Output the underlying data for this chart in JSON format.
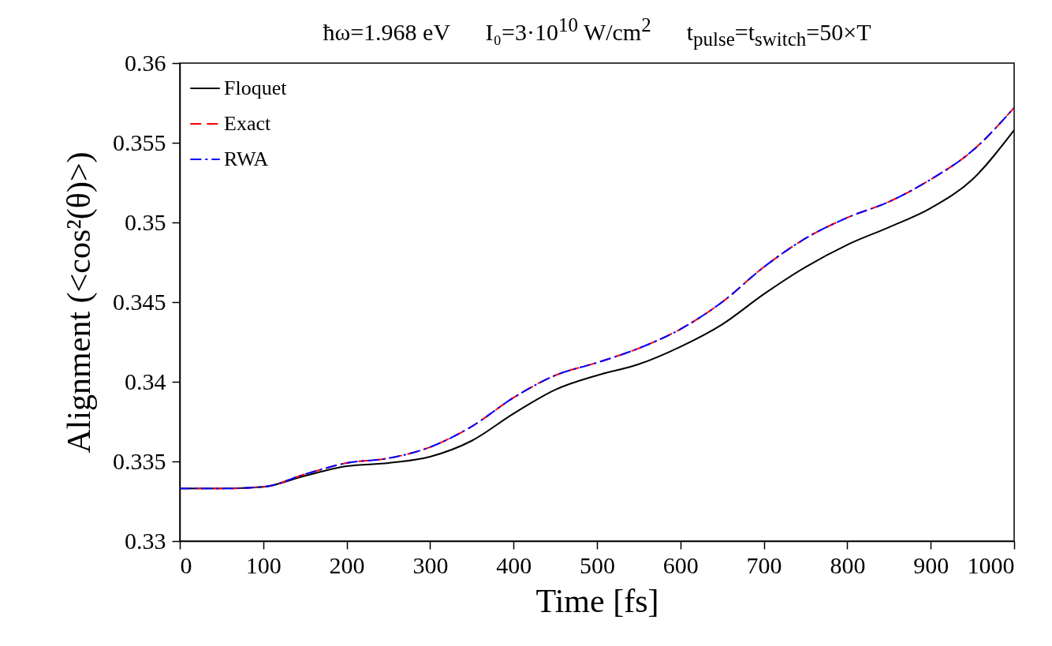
{
  "chart_data": {
    "type": "line",
    "title": "ħω=1.968 eV      I₀=3·10$^{10}$ W/cm$^{2}$      t$_{pulse}$=t$_{switch}$=50×T",
    "xlabel": "Time        [fs]",
    "ylabel": "Alignment (<cos²(θ)>)",
    "x": [
      0,
      50,
      100,
      150,
      200,
      250,
      300,
      350,
      400,
      450,
      500,
      550,
      600,
      650,
      700,
      750,
      800,
      850,
      900,
      950,
      1000
    ],
    "series": [
      {
        "name": "Floquet",
        "color": "#000000",
        "line_style": "solid",
        "values": [
          0.3333,
          0.3333,
          0.3334,
          0.3341,
          0.3347,
          0.3349,
          0.3353,
          0.3363,
          0.338,
          0.3395,
          0.3404,
          0.3411,
          0.3422,
          0.3436,
          0.3455,
          0.3472,
          0.3486,
          0.3497,
          0.3509,
          0.3527,
          0.3558
        ]
      },
      {
        "name": "Exact",
        "color": "#ff0000",
        "line_style": "dashed",
        "values": [
          0.3333,
          0.3333,
          0.3334,
          0.3342,
          0.3349,
          0.3352,
          0.3359,
          0.3372,
          0.339,
          0.3404,
          0.3412,
          0.3421,
          0.3433,
          0.345,
          0.3472,
          0.349,
          0.3503,
          0.3513,
          0.3527,
          0.3545,
          0.3572
        ]
      },
      {
        "name": "RWA",
        "color": "#0000ff",
        "line_style": "dashdot",
        "values": [
          0.3333,
          0.3333,
          0.3334,
          0.3342,
          0.3349,
          0.3352,
          0.3359,
          0.3372,
          0.339,
          0.3404,
          0.3412,
          0.3421,
          0.3433,
          0.345,
          0.3472,
          0.349,
          0.3503,
          0.3513,
          0.3527,
          0.3545,
          0.3572
        ]
      }
    ],
    "xlim": [
      0,
      1000
    ],
    "xticks": [
      0,
      100,
      200,
      300,
      400,
      500,
      600,
      700,
      800,
      900,
      1000
    ],
    "ylim": [
      0.33,
      0.36
    ],
    "yticks": [
      0.33,
      0.335,
      0.34,
      0.345,
      0.35,
      0.355,
      0.36
    ],
    "grid": false,
    "legend": "top left",
    "marker": "none"
  }
}
